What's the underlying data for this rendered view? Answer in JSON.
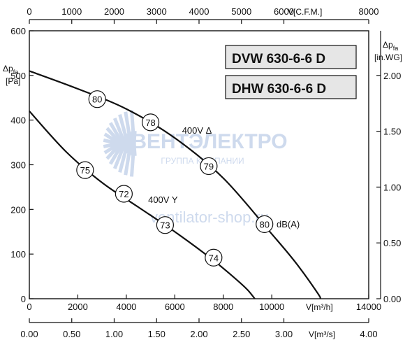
{
  "chart_data": {
    "type": "line",
    "title": "",
    "models": [
      "DVW 630-6-6 D",
      "DHW 630-6-6 D"
    ],
    "x_primary": {
      "unit": "V[m³/h]",
      "range": [
        0,
        14000
      ],
      "ticks": [
        "0",
        "2000",
        "4000",
        "6000",
        "8000",
        "10000",
        "14000"
      ],
      "tick_values": [
        0,
        2000,
        4000,
        6000,
        8000,
        10000,
        14000
      ]
    },
    "x_top": {
      "unit": "V[C.F.M.]",
      "range": [
        0,
        8000
      ],
      "ticks": [
        "0",
        "1000",
        "2000",
        "3000",
        "4000",
        "5000",
        "6000",
        "8000"
      ],
      "tick_values": [
        0,
        1000,
        2000,
        3000,
        4000,
        5000,
        6000,
        8000
      ]
    },
    "x_bottom": {
      "unit": "V[m³/s]",
      "range": [
        0,
        4.0
      ],
      "ticks": [
        "0.00",
        "0.50",
        "1.00",
        "1.50",
        "2.00",
        "2.50",
        "3.00",
        "4.00"
      ],
      "tick_values": [
        0,
        0.5,
        1,
        1.5,
        2,
        2.5,
        3,
        4
      ]
    },
    "y_left": {
      "label_main": "Δp",
      "label_sub": "fa",
      "unit": "[Pa]",
      "range": [
        0,
        600
      ],
      "ticks": [
        "0",
        "100",
        "200",
        "300",
        "400",
        "500",
        "600"
      ],
      "tick_values": [
        0,
        100,
        200,
        300,
        400,
        500,
        600
      ]
    },
    "y_right": {
      "label_main": "Δp",
      "label_sub": "fa",
      "unit": "[in.WG]",
      "range": [
        0,
        2.4
      ],
      "ticks": [
        "0.00",
        "0.50",
        "1.00",
        "1.50",
        "2.00"
      ],
      "tick_values": [
        0,
        0.5,
        1,
        1.5,
        2
      ]
    },
    "grid": false,
    "series": [
      {
        "name": "400V Δ",
        "x": [
          0,
          2000,
          4000,
          6000,
          8000,
          10000,
          11000,
          11900,
          12000
        ],
        "y": [
          510,
          470,
          425,
          360,
          270,
          145,
          80,
          12,
          0
        ]
      },
      {
        "name": "400V Y",
        "x": [
          0,
          1500,
          3000,
          4500,
          6000,
          7500,
          8500,
          9000,
          9300
        ],
        "y": [
          420,
          330,
          260,
          205,
          150,
          90,
          45,
          20,
          0
        ]
      }
    ],
    "annotations": [
      {
        "text": "80",
        "x": 2800,
        "y": 447,
        "series": "400V Δ"
      },
      {
        "text": "78",
        "x": 5000,
        "y": 395,
        "series": "400V Δ"
      },
      {
        "text": "79",
        "x": 7400,
        "y": 297,
        "series": "400V Δ"
      },
      {
        "text": "80",
        "x": 9700,
        "y": 167,
        "series": "400V Δ"
      },
      {
        "text": "75",
        "x": 2300,
        "y": 288,
        "series": "400V Y"
      },
      {
        "text": "72",
        "x": 3900,
        "y": 235,
        "series": "400V Y"
      },
      {
        "text": "73",
        "x": 5600,
        "y": 165,
        "series": "400V Y"
      },
      {
        "text": "74",
        "x": 7600,
        "y": 92,
        "series": "400V Y"
      }
    ],
    "annotation_unit": "dB(A)",
    "curve_labels": [
      {
        "text": "400V Δ",
        "x": 6300,
        "y": 370
      },
      {
        "text": "400V Y",
        "x": 4900,
        "y": 215
      }
    ]
  },
  "watermark": {
    "brand": "ВЕНТЭЛЕКТРО",
    "tagline": "ГРУППА КОМПАНИИ",
    "site": "ventilator-shop.ru"
  }
}
